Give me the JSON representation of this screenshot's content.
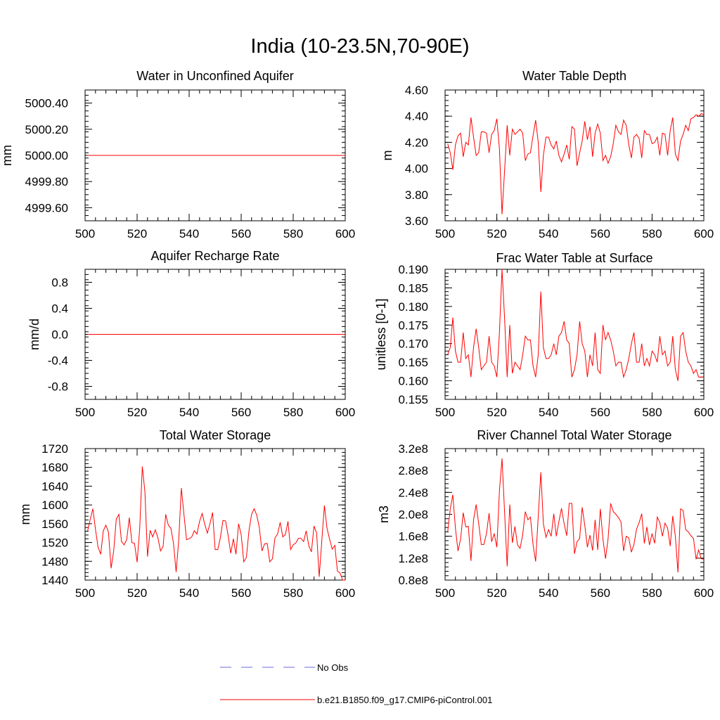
{
  "title": "India (10-23.5N,70-90E)",
  "legend": {
    "entries": [
      {
        "label": "No Obs",
        "color": "#6a6adf",
        "style": "dashed"
      },
      {
        "label": "b.e21.B1850.f09_g17.CMIP6-piControl.001",
        "color": "#ff0000",
        "style": "solid"
      }
    ]
  },
  "chart_data": [
    {
      "type": "line",
      "title": "Water in Unconfined Aquifer",
      "xlabel": "",
      "ylabel": "mm",
      "xlim": [
        500,
        600
      ],
      "ylim": [
        4999.5,
        5000.5
      ],
      "xticks": [
        500,
        520,
        540,
        560,
        580,
        600
      ],
      "xtick_labels": [
        "500",
        "520",
        "540",
        "560",
        "580",
        "600"
      ],
      "yticks": [
        4999.6,
        4999.8,
        5000.0,
        5000.2,
        5000.4
      ],
      "ytick_labels": [
        "4999.60",
        "4999.80",
        "5000.00",
        "5000.20",
        "5000.40"
      ],
      "x_start": 501,
      "series": [
        {
          "name": "b.e21.B1850.f09_g17.CMIP6-piControl.001",
          "color": "#ff0000",
          "values": [
            5000,
            5000,
            5000,
            5000,
            5000,
            5000,
            5000,
            5000,
            5000,
            5000,
            5000,
            5000,
            5000,
            5000,
            5000,
            5000,
            5000,
            5000,
            5000,
            5000,
            5000,
            5000,
            5000,
            5000,
            5000,
            5000,
            5000,
            5000,
            5000,
            5000,
            5000,
            5000,
            5000,
            5000,
            5000,
            5000,
            5000,
            5000,
            5000,
            5000,
            5000,
            5000,
            5000,
            5000,
            5000,
            5000,
            5000,
            5000,
            5000,
            5000,
            5000,
            5000,
            5000,
            5000,
            5000,
            5000,
            5000,
            5000,
            5000,
            5000,
            5000,
            5000,
            5000,
            5000,
            5000,
            5000,
            5000,
            5000,
            5000,
            5000,
            5000,
            5000,
            5000,
            5000,
            5000,
            5000,
            5000,
            5000,
            5000,
            5000,
            5000,
            5000,
            5000,
            5000,
            5000,
            5000,
            5000,
            5000,
            5000,
            5000,
            5000,
            5000,
            5000,
            5000,
            5000,
            5000,
            5000,
            5000,
            5000,
            5000
          ]
        }
      ]
    },
    {
      "type": "line",
      "title": "Water Table Depth",
      "xlabel": "",
      "ylabel": "m",
      "xlim": [
        500,
        600
      ],
      "ylim": [
        3.6,
        4.6
      ],
      "xticks": [
        500,
        520,
        540,
        560,
        580,
        600
      ],
      "xtick_labels": [
        "500",
        "520",
        "540",
        "560",
        "580",
        "600"
      ],
      "yticks": [
        3.6,
        3.8,
        4.0,
        4.2,
        4.4,
        4.6
      ],
      "ytick_labels": [
        "3.60",
        "3.80",
        "4.00",
        "4.20",
        "4.40",
        "4.60"
      ],
      "x_start": 501,
      "series": [
        {
          "name": "b.e21.B1850.f09_g17.CMIP6-piControl.001",
          "color": "#ff0000",
          "values": [
            4.19,
            4.12,
            3.99,
            4.18,
            4.25,
            4.27,
            4.09,
            4.2,
            4.18,
            4.39,
            4.24,
            4.1,
            4.12,
            4.28,
            4.28,
            4.27,
            4.12,
            4.26,
            4.29,
            4.38,
            4.15,
            3.65,
            3.98,
            4.33,
            4.1,
            4.3,
            4.26,
            4.28,
            4.3,
            4.27,
            4.06,
            4.11,
            4.12,
            4.25,
            4.37,
            4.2,
            3.82,
            4.1,
            4.24,
            4.24,
            4.18,
            4.15,
            4.21,
            4.1,
            4.05,
            4.11,
            4.18,
            4.07,
            4.32,
            4.3,
            4.02,
            4.12,
            4.21,
            4.36,
            4.22,
            4.32,
            4.09,
            4.27,
            4.34,
            4.27,
            4.06,
            4.1,
            4.04,
            4.09,
            4.19,
            4.33,
            4.28,
            4.26,
            4.37,
            4.33,
            4.18,
            4.08,
            4.24,
            4.26,
            4.23,
            4.08,
            4.29,
            4.26,
            4.26,
            4.19,
            4.2,
            4.24,
            4.1,
            4.27,
            4.26,
            4.1,
            4.29,
            4.39,
            4.11,
            4.06,
            4.21,
            4.26,
            4.33,
            4.29,
            4.38,
            4.39,
            4.41,
            4.4,
            4.42,
            4.41
          ]
        }
      ]
    },
    {
      "type": "line",
      "title": "Aquifer Recharge Rate",
      "xlabel": "",
      "ylabel": "mm/d",
      "xlim": [
        500,
        600
      ],
      "ylim": [
        -1.0,
        1.0
      ],
      "xticks": [
        500,
        520,
        540,
        560,
        580,
        600
      ],
      "xtick_labels": [
        "500",
        "520",
        "540",
        "560",
        "580",
        "600"
      ],
      "yticks": [
        -0.8,
        -0.4,
        0.0,
        0.4,
        0.8
      ],
      "ytick_labels": [
        "-0.8",
        "-0.4",
        "0.0",
        "0.4",
        "0.8"
      ],
      "x_start": 501,
      "series": [
        {
          "name": "b.e21.B1850.f09_g17.CMIP6-piControl.001",
          "color": "#ff0000",
          "values": [
            0,
            0,
            0,
            0,
            0,
            0,
            0,
            0,
            0,
            0,
            0,
            0,
            0,
            0,
            0,
            0,
            0,
            0,
            0,
            0,
            0,
            0,
            0,
            0,
            0,
            0,
            0,
            0,
            0,
            0,
            0,
            0,
            0,
            0,
            0,
            0,
            0,
            0,
            0,
            0,
            0,
            0,
            0,
            0,
            0,
            0,
            0,
            0,
            0,
            0,
            0,
            0,
            0,
            0,
            0,
            0,
            0,
            0,
            0,
            0,
            0,
            0,
            0,
            0,
            0,
            0,
            0,
            0,
            0,
            0,
            0,
            0,
            0,
            0,
            0,
            0,
            0,
            0,
            0,
            0,
            0,
            0,
            0,
            0,
            0,
            0,
            0,
            0,
            0,
            0,
            0,
            0,
            0,
            0,
            0,
            0,
            0,
            0,
            0,
            0
          ]
        }
      ]
    },
    {
      "type": "line",
      "title": "Frac Water Table at Surface",
      "xlabel": "",
      "ylabel": "unitless [0-1]",
      "xlim": [
        500,
        600
      ],
      "ylim": [
        0.155,
        0.19
      ],
      "xticks": [
        500,
        520,
        540,
        560,
        580,
        600
      ],
      "xtick_labels": [
        "500",
        "520",
        "540",
        "560",
        "580",
        "600"
      ],
      "yticks": [
        0.155,
        0.16,
        0.165,
        0.17,
        0.175,
        0.18,
        0.185,
        0.19
      ],
      "ytick_labels": [
        "0.155",
        "0.160",
        "0.165",
        "0.170",
        "0.175",
        "0.180",
        "0.185",
        "0.190"
      ],
      "x_start": 501,
      "series": [
        {
          "name": "b.e21.B1850.f09_g17.CMIP6-piControl.001",
          "color": "#ff0000",
          "values": [
            0.167,
            0.169,
            0.177,
            0.168,
            0.165,
            0.165,
            0.173,
            0.166,
            0.167,
            0.161,
            0.169,
            0.174,
            0.169,
            0.163,
            0.164,
            0.165,
            0.172,
            0.165,
            0.164,
            0.161,
            0.173,
            0.19,
            0.177,
            0.161,
            0.175,
            0.162,
            0.165,
            0.164,
            0.163,
            0.167,
            0.172,
            0.171,
            0.171,
            0.164,
            0.161,
            0.167,
            0.184,
            0.169,
            0.166,
            0.166,
            0.167,
            0.17,
            0.167,
            0.172,
            0.173,
            0.176,
            0.171,
            0.17,
            0.161,
            0.163,
            0.167,
            0.176,
            0.17,
            0.168,
            0.161,
            0.167,
            0.164,
            0.173,
            0.163,
            0.162,
            0.175,
            0.171,
            0.173,
            0.171,
            0.168,
            0.164,
            0.165,
            0.165,
            0.161,
            0.163,
            0.166,
            0.17,
            0.173,
            0.165,
            0.165,
            0.17,
            0.164,
            0.166,
            0.164,
            0.168,
            0.167,
            0.165,
            0.172,
            0.167,
            0.168,
            0.164,
            0.165,
            0.172,
            0.163,
            0.16,
            0.172,
            0.173,
            0.168,
            0.165,
            0.164,
            0.162,
            0.163,
            0.161,
            0.161,
            0.161
          ]
        }
      ]
    },
    {
      "type": "line",
      "title": "Total Water Storage",
      "xlabel": "",
      "ylabel": "mm",
      "xlim": [
        500,
        600
      ],
      "ylim": [
        1440,
        1720
      ],
      "xticks": [
        500,
        520,
        540,
        560,
        580,
        600
      ],
      "xtick_labels": [
        "500",
        "520",
        "540",
        "560",
        "580",
        "600"
      ],
      "yticks": [
        1440,
        1480,
        1520,
        1560,
        1600,
        1640,
        1680,
        1720
      ],
      "ytick_labels": [
        "1440",
        "1480",
        "1520",
        "1560",
        "1600",
        "1640",
        "1680",
        "1720"
      ],
      "x_start": 501,
      "series": [
        {
          "name": "b.e21.B1850.f09_g17.CMIP6-piControl.001",
          "color": "#ff0000",
          "values": [
            1545,
            1570,
            1592,
            1548,
            1510,
            1495,
            1545,
            1557,
            1542,
            1465,
            1502,
            1570,
            1580,
            1522,
            1515,
            1526,
            1573,
            1520,
            1518,
            1478,
            1550,
            1682,
            1628,
            1490,
            1546,
            1532,
            1547,
            1530,
            1502,
            1512,
            1580,
            1557,
            1550,
            1518,
            1457,
            1525,
            1636,
            1580,
            1526,
            1528,
            1532,
            1545,
            1538,
            1565,
            1582,
            1559,
            1540,
            1560,
            1584,
            1505,
            1505,
            1530,
            1567,
            1566,
            1535,
            1497,
            1528,
            1495,
            1560,
            1537,
            1479,
            1488,
            1545,
            1580,
            1592,
            1578,
            1551,
            1502,
            1517,
            1518,
            1479,
            1485,
            1530,
            1538,
            1563,
            1532,
            1537,
            1565,
            1505,
            1515,
            1519,
            1529,
            1529,
            1522,
            1545,
            1513,
            1500,
            1555,
            1540,
            1447,
            1524,
            1599,
            1550,
            1527,
            1506,
            1514,
            1459,
            1455,
            1440,
            1440
          ]
        }
      ]
    },
    {
      "type": "line",
      "title": "River Channel Total Water Storage",
      "xlabel": "",
      "ylabel": "m3",
      "xlim": [
        500,
        600
      ],
      "ylim": [
        80000000,
        320000000
      ],
      "xticks": [
        500,
        520,
        540,
        560,
        580,
        600
      ],
      "xtick_labels": [
        "500",
        "520",
        "540",
        "560",
        "580",
        "600"
      ],
      "yticks": [
        80000000,
        120000000,
        160000000,
        200000000,
        240000000,
        280000000,
        320000000
      ],
      "ytick_labels": [
        "0.8e8",
        "1.2e8",
        "1.6e8",
        "2.0e8",
        "2.4e8",
        "2.8e8",
        "3.2e8"
      ],
      "x_start": 501,
      "series": [
        {
          "name": "b.e21.B1850.f09_g17.CMIP6-piControl.001",
          "color": "#ff0000",
          "values": [
            168000000,
            210000000,
            236000000,
            175000000,
            133000000,
            155000000,
            203000000,
            177000000,
            178000000,
            115000000,
            190000000,
            218000000,
            183000000,
            145000000,
            145000000,
            165000000,
            202000000,
            150000000,
            165000000,
            140000000,
            243000000,
            302000000,
            205000000,
            105000000,
            218000000,
            148000000,
            178000000,
            144000000,
            138000000,
            163000000,
            205000000,
            190000000,
            195000000,
            145000000,
            114000000,
            196000000,
            277000000,
            183000000,
            158000000,
            172000000,
            160000000,
            201000000,
            160000000,
            187000000,
            211000000,
            183000000,
            161000000,
            220000000,
            220000000,
            128000000,
            150000000,
            156000000,
            213000000,
            180000000,
            140000000,
            162000000,
            134000000,
            190000000,
            135000000,
            210000000,
            155000000,
            119000000,
            155000000,
            220000000,
            205000000,
            200000000,
            194000000,
            186000000,
            133000000,
            160000000,
            157000000,
            131000000,
            145000000,
            173000000,
            185000000,
            201000000,
            147000000,
            177000000,
            144000000,
            165000000,
            147000000,
            195000000,
            185000000,
            160000000,
            184000000,
            175000000,
            142000000,
            197000000,
            160000000,
            94000000,
            210000000,
            207000000,
            172000000,
            168000000,
            161000000,
            156000000,
            118000000,
            135000000,
            119000000,
            118000000
          ]
        }
      ]
    }
  ]
}
